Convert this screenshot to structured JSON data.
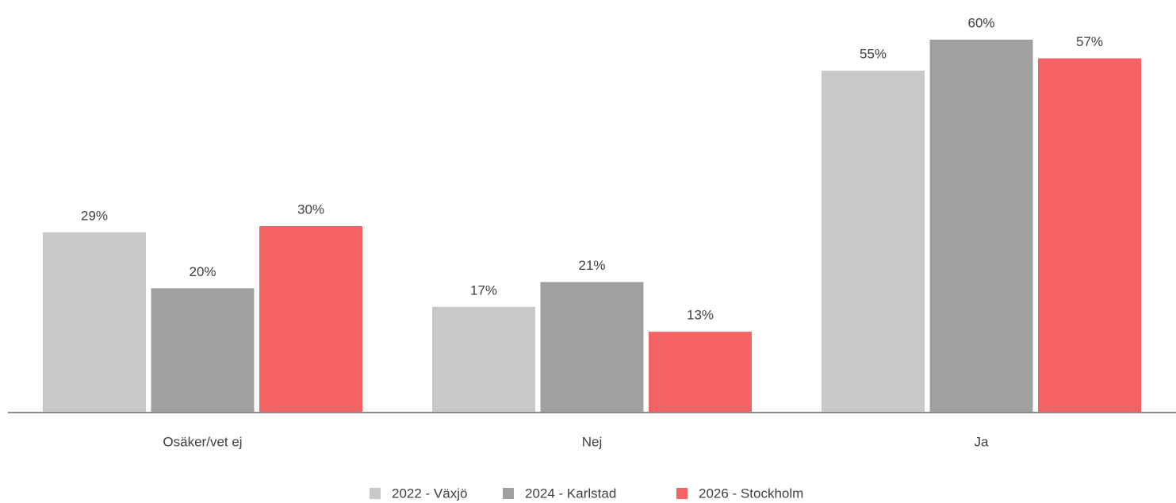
{
  "chart_data": {
    "type": "bar",
    "categories": [
      "Osäker/vet ej",
      "Nej",
      "Ja"
    ],
    "series": [
      {
        "name": "2022 - Växjö",
        "color": "#c8c8c8",
        "values": [
          29,
          17,
          55
        ],
        "value_labels": [
          "29%",
          "17%",
          "55%"
        ]
      },
      {
        "name": "2024 - Karlstad",
        "color": "#a0a0a0",
        "values": [
          20,
          21,
          60
        ],
        "value_labels": [
          "20%",
          "21%",
          "60%"
        ]
      },
      {
        "name": "2026 - Stockholm",
        "color": "#f46264",
        "values": [
          30,
          13,
          57
        ],
        "value_labels": [
          "30%",
          "13%",
          "57%"
        ]
      }
    ],
    "legend": "bottom"
  }
}
